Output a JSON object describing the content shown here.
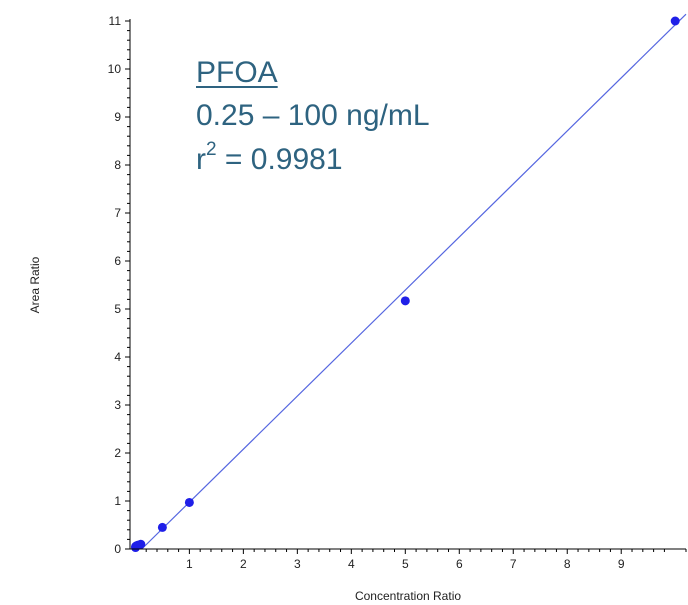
{
  "chart_data": {
    "type": "scatter",
    "xlabel": "Concentration Ratio",
    "ylabel": "Area Ratio",
    "xlim": [
      -0.1,
      10.2
    ],
    "ylim": [
      0,
      11
    ],
    "x_ticks": [
      1,
      2,
      3,
      4,
      5,
      6,
      7,
      8,
      9
    ],
    "y_ticks": [
      0,
      1,
      2,
      3,
      4,
      5,
      6,
      7,
      8,
      9,
      10,
      11
    ],
    "series": [
      {
        "marker_color": "#1f1fe8",
        "points": [
          {
            "x": 0.0025,
            "y": 0.03
          },
          {
            "x": 0.005,
            "y": 0.05
          },
          {
            "x": 0.01,
            "y": 0.06
          },
          {
            "x": 0.025,
            "y": 0.07
          },
          {
            "x": 0.05,
            "y": 0.08
          },
          {
            "x": 0.1,
            "y": 0.1
          },
          {
            "x": 0.5,
            "y": 0.45
          },
          {
            "x": 1.0,
            "y": 0.97
          },
          {
            "x": 5.0,
            "y": 5.17
          },
          {
            "x": 10.0,
            "y": 11.0
          }
        ]
      }
    ],
    "fit_line": {
      "slope": 1.105,
      "intercept": -0.13,
      "color": "#5566e0"
    },
    "grid": false,
    "annotation": {
      "title": "PFOA",
      "range": "0.25 – 100 ng/mL",
      "r2_base": "r",
      "r2_exp": "2",
      "r2_value": " = 0.9981",
      "color": "#2e6380"
    }
  }
}
